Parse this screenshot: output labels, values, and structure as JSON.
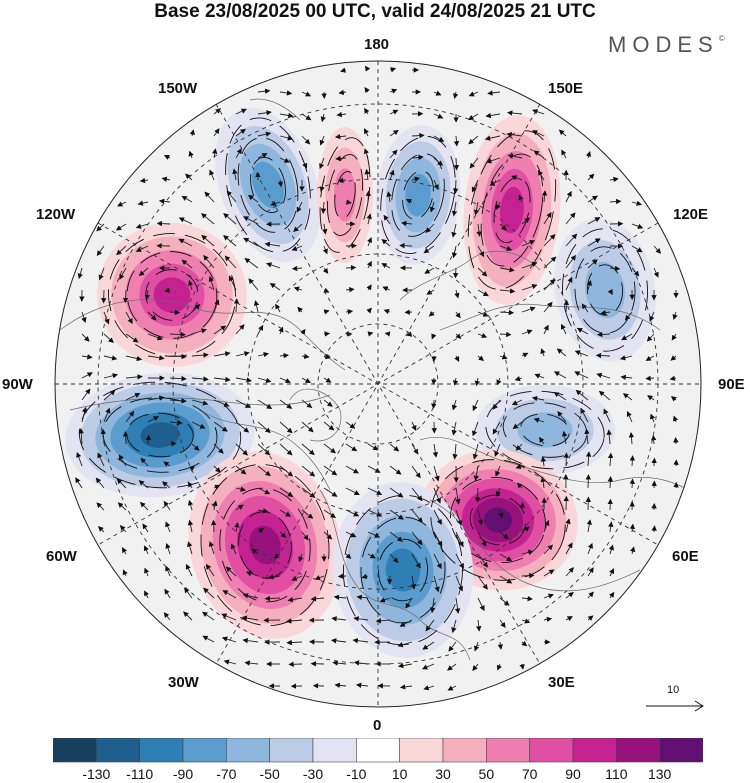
{
  "title": "Base 23/08/2025 00 UTC, valid 24/08/2025 21 UTC",
  "brand": {
    "name": "MODES",
    "mark": "©"
  },
  "longitude_labels": {
    "lon_180": "180",
    "lon_150w": "150W",
    "lon_150e": "150E",
    "lon_120w": "120W",
    "lon_120e": "120E",
    "lon_90w": "90W",
    "lon_90e": "90E",
    "lon_60w": "60W",
    "lon_60e": "60E",
    "lon_30w": "30W",
    "lon_30e": "30E",
    "lon_0": "0"
  },
  "reference_vector": {
    "label": "10"
  },
  "colorbar": {
    "ticks": [
      "-130",
      "-110",
      "-90",
      "-70",
      "-50",
      "-30",
      "-10",
      "10",
      "30",
      "50",
      "70",
      "90",
      "110",
      "130"
    ],
    "colors": [
      "#17405e",
      "#1f5f8e",
      "#2e7fb5",
      "#5a9ccd",
      "#8fb6dc",
      "#bccbe6",
      "#e4e3f1",
      "#ffffff",
      "#f9d6d8",
      "#f5b0c0",
      "#ef7fb0",
      "#e04fa4",
      "#c42291",
      "#98127e",
      "#611071"
    ]
  },
  "anomaly_centers": [
    {
      "id": "center-150w",
      "value": -70
    },
    {
      "id": "center-170w",
      "value": 50
    },
    {
      "id": "center-170e",
      "value": -70
    },
    {
      "id": "center-150e",
      "value": 90
    },
    {
      "id": "center-120e",
      "value": -50
    },
    {
      "id": "center-120w",
      "value": 90
    },
    {
      "id": "center-75w",
      "value": -110
    },
    {
      "id": "center-80e",
      "value": -50
    },
    {
      "id": "center-45w",
      "value": 110
    },
    {
      "id": "center-45e",
      "value": 130
    },
    {
      "id": "center-5e",
      "value": -90
    }
  ]
}
